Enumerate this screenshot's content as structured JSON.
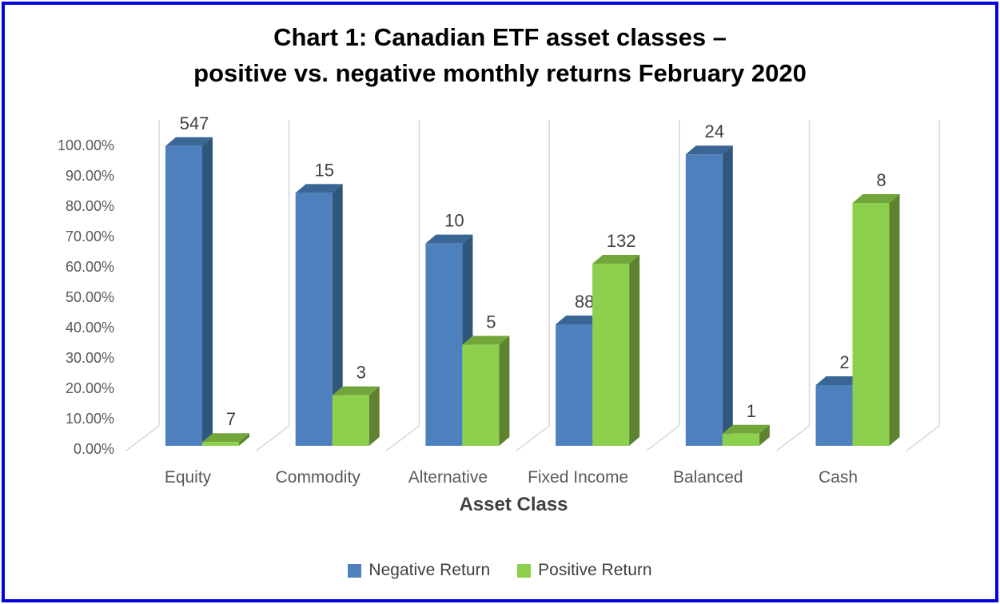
{
  "window": {
    "border_color": "#0202DC",
    "background": "#FFFFFF"
  },
  "chart_data": {
    "type": "bar",
    "projection": "3d-clustered-column",
    "title": "Chart 1: Canadian ETF asset classes – positive vs. negative monthly returns February 2020",
    "title_lines": [
      "Chart 1: Canadian ETF asset classes –",
      "positive vs. negative monthly returns February 2020"
    ],
    "xlabel": "Asset Class",
    "ylabel": "",
    "ylim": [
      0,
      100
    ],
    "y_tick_labels": [
      "0.00%",
      "10.00%",
      "20.00%",
      "30.00%",
      "40.00%",
      "50.00%",
      "60.00%",
      "70.00%",
      "80.00%",
      "90.00%",
      "100.00%"
    ],
    "categories": [
      "Equity",
      "Commodity",
      "Alternative",
      "Fixed Income",
      "Balanced",
      "Cash"
    ],
    "series": [
      {
        "name": "Negative Return",
        "counts": [
          547,
          15,
          10,
          88,
          24,
          2
        ],
        "share_pct": [
          98.74,
          83.33,
          66.67,
          40.0,
          96.0,
          20.0
        ],
        "color_front": "#4D80BC",
        "color_side": "#31567D",
        "color_top": "#396694"
      },
      {
        "name": "Positive Return",
        "counts": [
          7,
          3,
          5,
          132,
          1,
          8
        ],
        "share_pct": [
          1.26,
          16.67,
          33.33,
          60.0,
          4.0,
          80.0
        ],
        "color_front": "#8CD04E",
        "color_side": "#5E8230",
        "color_top": "#72A63B"
      }
    ],
    "legend_position": "bottom",
    "grid": "3d-panes",
    "pane_line_color": "#D9D9D9",
    "data_label_color": "#404040",
    "axis_text_color": "#595959",
    "title_color": "#000000"
  }
}
